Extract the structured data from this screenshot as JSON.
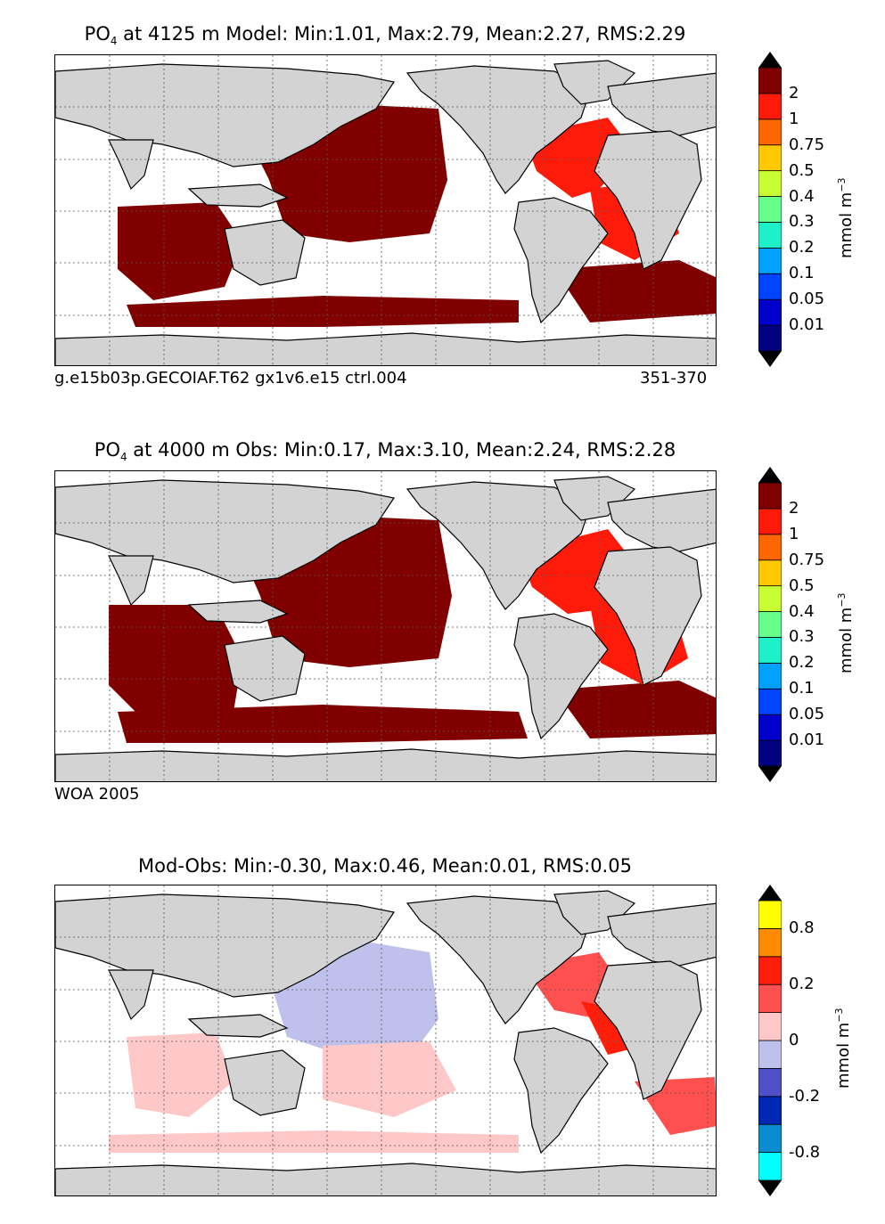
{
  "panels": [
    {
      "title_species": "PO",
      "title_sub": "4",
      "title_rest": " at 4125 m Model: Min:1.01, Max:2.79, Mean:2.27, RMS:2.29",
      "caption_left": "g.e15b03p.GECOIAF.T62 gx1v6.e15 ctrl.004",
      "caption_right": "351-370",
      "colorbar": {
        "colors": [
          "#000080",
          "#0000cd",
          "#0044ff",
          "#00a0ff",
          "#1ef0c8",
          "#66ff8c",
          "#c8ff32",
          "#ffc800",
          "#ff6600",
          "#ff1a0a",
          "#800000"
        ],
        "ticks": [
          "0.01",
          "0.05",
          "0.1",
          "0.2",
          "0.3",
          "0.4",
          "0.5",
          "0.75",
          "1",
          "2"
        ],
        "unit": "mmol m",
        "unit_sup": "−3"
      }
    },
    {
      "title_species": "PO",
      "title_sub": "4",
      "title_rest": " at 4000 m Obs: Min:0.17, Max:3.10, Mean:2.24, RMS:2.28",
      "caption_left": "WOA 2005",
      "colorbar": {
        "colors": [
          "#000080",
          "#0000cd",
          "#0044ff",
          "#00a0ff",
          "#1ef0c8",
          "#66ff8c",
          "#c8ff32",
          "#ffc800",
          "#ff6600",
          "#ff1a0a",
          "#800000"
        ],
        "ticks": [
          "0.01",
          "0.05",
          "0.1",
          "0.2",
          "0.3",
          "0.4",
          "0.5",
          "0.75",
          "1",
          "2"
        ],
        "unit": "mmol m",
        "unit_sup": "−3"
      }
    },
    {
      "title_rest": "Mod-Obs: Min:-0.30, Max:0.46, Mean:0.01, RMS:0.05",
      "colorbar": {
        "colors": [
          "#00ffff",
          "#0a8cd2",
          "#0028b4",
          "#5050c8",
          "#c0c0ec",
          "#ffc8c8",
          "#ff5050",
          "#ff1e0a",
          "#ff8c00",
          "#ffff00"
        ],
        "ticks": [
          "-0.8",
          "-0.2",
          "0",
          "0.2",
          "0.8"
        ],
        "unit": "mmol m",
        "unit_sup": "−3"
      }
    }
  ],
  "chart_data": [
    {
      "type": "heatmap",
      "title": "PO4 at 4125 m Model: Min:1.01, Max:2.79, Mean:2.27, RMS:2.29",
      "variable": "PO4",
      "depth_m": 4125,
      "stats": {
        "min": 1.01,
        "max": 2.79,
        "mean": 2.27,
        "rms": 2.29
      },
      "colorbar_ticks": [
        0.01,
        0.05,
        0.1,
        0.2,
        0.3,
        0.4,
        0.5,
        0.75,
        1,
        2
      ],
      "unit": "mmol m-3",
      "grid": true
    },
    {
      "type": "heatmap",
      "title": "PO4 at 4000 m Obs: Min:0.17, Max:3.10, Mean:2.24, RMS:2.28",
      "variable": "PO4",
      "depth_m": 4000,
      "stats": {
        "min": 0.17,
        "max": 3.1,
        "mean": 2.24,
        "rms": 2.28
      },
      "colorbar_ticks": [
        0.01,
        0.05,
        0.1,
        0.2,
        0.3,
        0.4,
        0.5,
        0.75,
        1,
        2
      ],
      "unit": "mmol m-3",
      "grid": true
    },
    {
      "type": "heatmap",
      "title": "Mod-Obs: Min:-0.30, Max:0.46, Mean:0.01, RMS:0.05",
      "stats": {
        "min": -0.3,
        "max": 0.46,
        "mean": 0.01,
        "rms": 0.05
      },
      "colorbar_ticks": [
        -0.8,
        -0.2,
        0,
        0.2,
        0.8
      ],
      "unit": "mmol m-3",
      "grid": true
    }
  ]
}
